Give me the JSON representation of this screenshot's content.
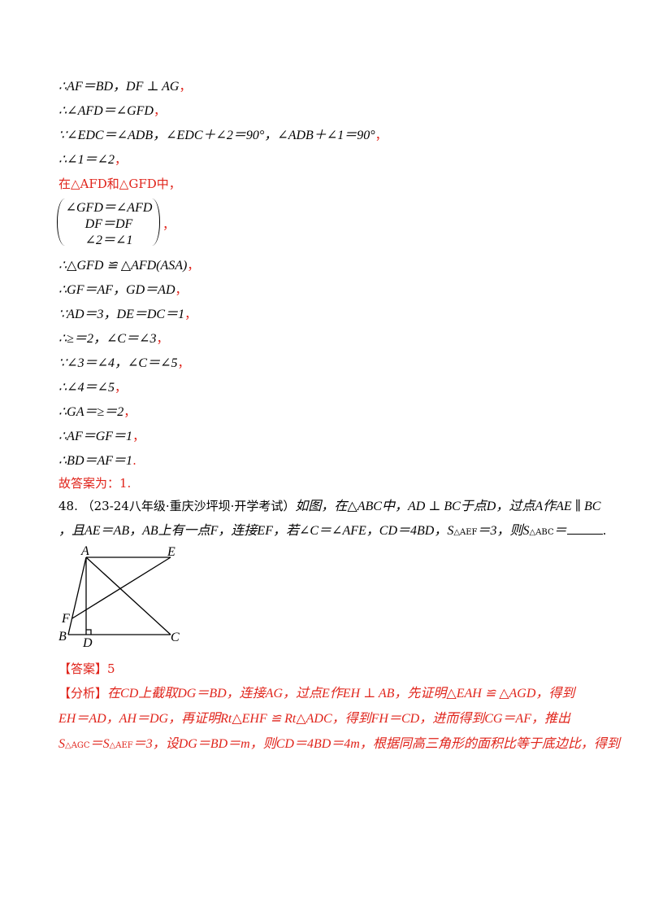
{
  "proof_lines": [
    {
      "text": "∴AF＝BD，DF ⊥ AG",
      "tail": "，"
    },
    {
      "text": "∴∠AFD＝∠GFD",
      "tail": "，"
    },
    {
      "text": "∵∠EDC＝∠ADB，∠EDC＋∠2＝90°，∠ADB＋∠1＝90°",
      "tail": "，"
    },
    {
      "text": "∴∠1＝∠2",
      "tail": "，"
    },
    {
      "text": "在△AFD和△GFD中，",
      "tail": ""
    }
  ],
  "system": {
    "rows": [
      "∠GFD＝∠AFD",
      "DF＝DF",
      "∠2＝∠1"
    ],
    "tail": "，"
  },
  "proof_lines_2": [
    {
      "text": "∴△GFD ≌ △AFD(ASA)",
      "tail": "，"
    },
    {
      "text": "∴GF＝AF，GD＝AD",
      "tail": "，"
    },
    {
      "text": "∵AD＝3，DE＝DC＝1",
      "tail": "，"
    },
    {
      "text": "∴≥＝2，∠C＝∠3",
      "tail": "，"
    },
    {
      "text": "∵∠3＝∠4，∠C＝∠5",
      "tail": "，"
    },
    {
      "text": "∴∠4＝∠5",
      "tail": "，"
    },
    {
      "text": "∴GA＝≥＝2",
      "tail": "，"
    },
    {
      "text": "∴AF＝GF＝1",
      "tail": "，"
    },
    {
      "text": "∴BD＝AF＝1",
      "tail": "."
    }
  ],
  "answer_prev": "故答案为：1.",
  "problem": {
    "number": "48.",
    "source": "（23-24八年级·重庆沙坪坝·开学考试）",
    "line1": "如图，在△ABC中，AD ⊥ BC于点D，过点A作AE ∥ BC",
    "line2_a": "，且AE＝AB，AB上有一点F，连接EF，若∠C＝∠AFE，CD＝4BD，S",
    "line2_sub1": "△AEF",
    "line2_b": "＝3，则S",
    "line2_sub2": "△ABC",
    "line2_c": "＝",
    "line2_end": "."
  },
  "figure_labels": {
    "A": "A",
    "E": "E",
    "F": "F",
    "B": "B",
    "D": "D",
    "C": "C"
  },
  "answer": {
    "tag": "【答案】",
    "value": "5"
  },
  "analysis": {
    "tag": "【分析】",
    "line1": "在CD上截取DG＝BD，连接AG，过点E作EH ⊥ AB，先证明△EAH ≌ △AGD，得到",
    "line2": "EH＝AD，AH＝DG，再证明Rt△EHF ≌ Rt△ADC，得到FH＝CD，进而得到CG＝AF，推出",
    "line3_a": "S",
    "line3_sub1": "△AGC",
    "line3_b": "＝S",
    "line3_sub2": "△AEF",
    "line3_c": "＝3，设DG＝BD＝m，则CD＝4BD＝4m，根据同高三角形的面积比等于底边比，得到"
  }
}
